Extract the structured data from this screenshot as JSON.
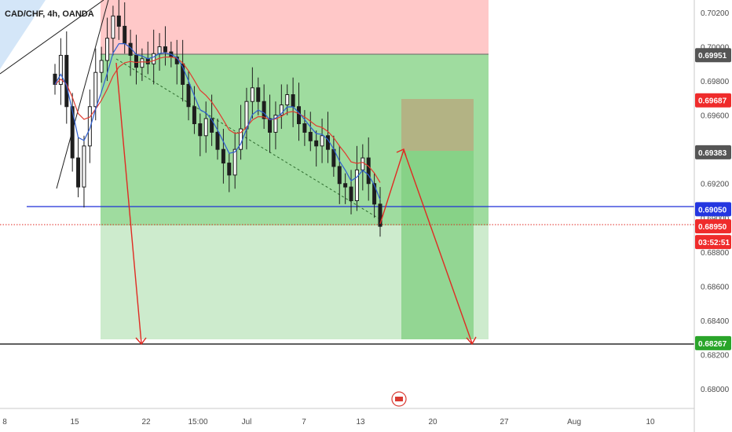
{
  "symbol_title": "CAD/CHF, 4h, OANDA",
  "colors": {
    "up_candle": "#1e1e1e",
    "down_candle": "#1e1e1e",
    "ema_fast": "#2f5fd0",
    "ema_slow": "#e03a2f",
    "stop_zone": "#ffc8c8",
    "target_zone": "#9fdc9f",
    "target_zone_light": "#cdebcd",
    "arrow": "#e02a22",
    "support_line": "#1f2fd8",
    "current_price_line": "#e02a22",
    "target_line": "#000000",
    "label_gray": "#555555",
    "label_red": "#ef2b2b",
    "label_blue": "#2436e0",
    "label_green": "#2aa52a"
  },
  "chart_data": {
    "type": "candlestick",
    "title": "CAD/CHF, 4h, OANDA",
    "x_tick_labels": [
      "8",
      "15",
      "22",
      "15:00",
      "Jul",
      "7",
      "13",
      "20",
      "27",
      "Aug",
      "10"
    ],
    "y_tick_labels": [
      "0.70200",
      "0.70000",
      "0.69800",
      "0.69600",
      "0.69400",
      "0.69200",
      "0.69000",
      "0.68800",
      "0.68600",
      "0.68400",
      "0.68200",
      "0.68000"
    ],
    "ylim": [
      0.6785,
      0.7027
    ],
    "price_labels": [
      {
        "value": "0.69951",
        "style": "gray"
      },
      {
        "value": "0.69687",
        "style": "red"
      },
      {
        "value": "0.69383",
        "style": "gray"
      },
      {
        "value": "0.69050",
        "style": "blue"
      },
      {
        "value": "0.68950",
        "style": "red"
      },
      {
        "value": "03:52:51",
        "style": "red"
      },
      {
        "value": "0.68267",
        "style": "green"
      }
    ],
    "levels": {
      "support": 0.6905,
      "current": 0.6895,
      "target": 0.68267,
      "stop_top": 0.7027,
      "entry": 0.69951,
      "zone_bottom": 0.6829
    },
    "projection_box": {
      "top": 0.69687,
      "mid": 0.69383,
      "bottom": 0.6829
    },
    "series_close": [
      0.6978,
      0.6995,
      0.6965,
      0.6935,
      0.6918,
      0.6942,
      0.6965,
      0.6985,
      0.6992,
      0.7005,
      0.7018,
      0.7012,
      0.7002,
      0.6995,
      0.6988,
      0.6993,
      0.699,
      0.6996,
      0.7,
      0.6997,
      0.6994,
      0.699,
      0.6978,
      0.6965,
      0.6955,
      0.6948,
      0.6958,
      0.695,
      0.694,
      0.6932,
      0.6925,
      0.694,
      0.6952,
      0.6968,
      0.6976,
      0.6968,
      0.6958,
      0.695,
      0.696,
      0.6966,
      0.6972,
      0.6965,
      0.6955,
      0.695,
      0.6945,
      0.6942,
      0.6948,
      0.694,
      0.693,
      0.692,
      0.6918,
      0.691,
      0.6928,
      0.6935,
      0.692,
      0.6908,
      0.6895
    ]
  }
}
